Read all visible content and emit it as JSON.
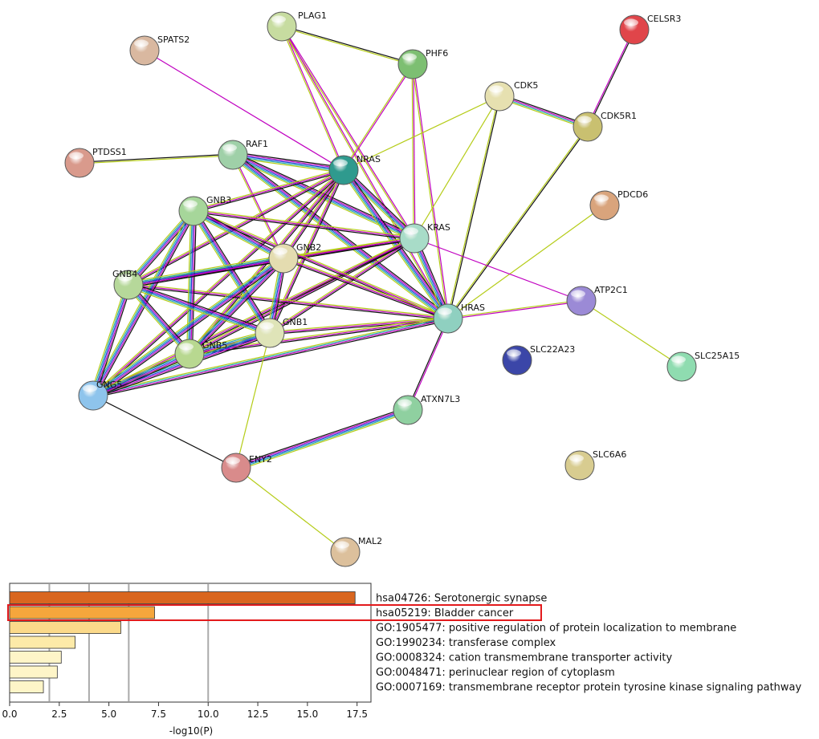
{
  "network": {
    "nodes": [
      {
        "id": "PLAG1",
        "label": "PLAG1",
        "color": "#c7dca0"
      },
      {
        "id": "SPATS2",
        "label": "SPATS2",
        "color": "#d9b8a0"
      },
      {
        "id": "PHF6",
        "label": "PHF6",
        "color": "#7dbf72"
      },
      {
        "id": "CELSR3",
        "label": "CELSR3",
        "color": "#e0454a"
      },
      {
        "id": "CDK5",
        "label": "CDK5",
        "color": "#e6e0b0"
      },
      {
        "id": "CDK5R1",
        "label": "CDK5R1",
        "color": "#c9c070"
      },
      {
        "id": "PTDSS1",
        "label": "PTDSS1",
        "color": "#d99a8c"
      },
      {
        "id": "RAF1",
        "label": "RAF1",
        "color": "#9fd0a8"
      },
      {
        "id": "NRAS",
        "label": "NRAS",
        "color": "#2f9a8e"
      },
      {
        "id": "PDCD6",
        "label": "PDCD6",
        "color": "#d9a47c"
      },
      {
        "id": "GNB3",
        "label": "GNB3",
        "color": "#a6d69a"
      },
      {
        "id": "KRAS",
        "label": "KRAS",
        "color": "#a8dcc8"
      },
      {
        "id": "GNB2",
        "label": "GNB2",
        "color": "#e4dcb0"
      },
      {
        "id": "GNB4",
        "label": "GNB4",
        "color": "#b6d89a"
      },
      {
        "id": "ATP2C1",
        "label": "ATP2C1",
        "color": "#9b8ad6"
      },
      {
        "id": "HRAS",
        "label": "HRAS",
        "color": "#8fd0c0"
      },
      {
        "id": "GNB1",
        "label": "GNB1",
        "color": "#dfe4b8"
      },
      {
        "id": "SLC22A23",
        "label": "SLC22A23",
        "color": "#3b46a8"
      },
      {
        "id": "GNB5",
        "label": "GNB5",
        "color": "#b8d890"
      },
      {
        "id": "SLC25A15",
        "label": "SLC25A15",
        "color": "#8fdcb0"
      },
      {
        "id": "GNG5",
        "label": "GNG5",
        "color": "#8ec4ec"
      },
      {
        "id": "ATXN7L3",
        "label": "ATXN7L3",
        "color": "#8fd0a0"
      },
      {
        "id": "ENY2",
        "label": "ENY2",
        "color": "#d98b8b"
      },
      {
        "id": "SLC6A6",
        "label": "SLC6A6",
        "color": "#d8cc90"
      },
      {
        "id": "MAL2",
        "label": "MAL2",
        "color": "#dcc09c"
      }
    ],
    "edges": [
      {
        "a": "PLAG1",
        "b": "PHF6",
        "colors": [
          "#111111",
          "#b5cc18"
        ]
      },
      {
        "a": "PLAG1",
        "b": "NRAS",
        "colors": [
          "#c000c0",
          "#b5cc18"
        ]
      },
      {
        "a": "PLAG1",
        "b": "KRAS",
        "colors": [
          "#c000c0",
          "#b5cc18"
        ]
      },
      {
        "a": "PLAG1",
        "b": "HRAS",
        "colors": [
          "#c000c0",
          "#b5cc18"
        ]
      },
      {
        "a": "PHF6",
        "b": "NRAS",
        "colors": [
          "#c000c0",
          "#b5cc18"
        ]
      },
      {
        "a": "PHF6",
        "b": "KRAS",
        "colors": [
          "#c000c0",
          "#b5cc18"
        ]
      },
      {
        "a": "PHF6",
        "b": "HRAS",
        "colors": [
          "#c000c0",
          "#b5cc18"
        ]
      },
      {
        "a": "SPATS2",
        "b": "NRAS",
        "colors": [
          "#c000c0"
        ]
      },
      {
        "a": "CELSR3",
        "b": "CDK5R1",
        "colors": [
          "#111111",
          "#c000c0"
        ]
      },
      {
        "a": "CDK5",
        "b": "CDK5R1",
        "colors": [
          "#111111",
          "#c000c0",
          "#22aaaa",
          "#b5cc18"
        ]
      },
      {
        "a": "CDK5",
        "b": "NRAS",
        "colors": [
          "#b5cc18"
        ]
      },
      {
        "a": "CDK5",
        "b": "KRAS",
        "colors": [
          "#b5cc18"
        ]
      },
      {
        "a": "CDK5",
        "b": "HRAS",
        "colors": [
          "#111111",
          "#b5cc18"
        ]
      },
      {
        "a": "CDK5R1",
        "b": "HRAS",
        "colors": [
          "#111111",
          "#b5cc18"
        ]
      },
      {
        "a": "PTDSS1",
        "b": "RAF1",
        "colors": [
          "#111111",
          "#b5cc18"
        ]
      },
      {
        "a": "PDCD6",
        "b": "HRAS",
        "colors": [
          "#b5cc18"
        ]
      },
      {
        "a": "ATP2C1",
        "b": "SLC25A15",
        "colors": [
          "#b5cc18"
        ]
      },
      {
        "a": "ATP2C1",
        "b": "HRAS",
        "colors": [
          "#c000c0",
          "#b5cc18"
        ]
      },
      {
        "a": "KRAS",
        "b": "ATP2C1",
        "colors": [
          "#c000c0"
        ]
      },
      {
        "a": "RAF1",
        "b": "NRAS",
        "colors": [
          "#111111",
          "#c000c0",
          "#1a3fd8",
          "#22aaaa",
          "#b5cc18"
        ]
      },
      {
        "a": "RAF1",
        "b": "KRAS",
        "colors": [
          "#111111",
          "#c000c0",
          "#1a3fd8",
          "#22aaaa",
          "#b5cc18"
        ]
      },
      {
        "a": "RAF1",
        "b": "HRAS",
        "colors": [
          "#111111",
          "#c000c0",
          "#1a3fd8",
          "#22aaaa",
          "#b5cc18"
        ]
      },
      {
        "a": "RAF1",
        "b": "GNB2",
        "colors": [
          "#c000c0",
          "#b5cc18"
        ]
      },
      {
        "a": "NRAS",
        "b": "KRAS",
        "colors": [
          "#111111",
          "#c000c0",
          "#1a3fd8",
          "#22aaaa",
          "#b5cc18"
        ]
      },
      {
        "a": "NRAS",
        "b": "HRAS",
        "colors": [
          "#111111",
          "#c000c0",
          "#1a3fd8",
          "#22aaaa",
          "#b5cc18"
        ]
      },
      {
        "a": "KRAS",
        "b": "HRAS",
        "colors": [
          "#111111",
          "#c000c0",
          "#1a3fd8",
          "#22aaaa",
          "#b5cc18"
        ]
      },
      {
        "a": "NRAS",
        "b": "GNB3",
        "colors": [
          "#111111",
          "#c000c0",
          "#b5cc18"
        ]
      },
      {
        "a": "NRAS",
        "b": "GNB2",
        "colors": [
          "#111111",
          "#c000c0",
          "#b5cc18"
        ]
      },
      {
        "a": "NRAS",
        "b": "GNB4",
        "colors": [
          "#111111",
          "#c000c0",
          "#b5cc18"
        ]
      },
      {
        "a": "NRAS",
        "b": "GNB1",
        "colors": [
          "#111111",
          "#c000c0",
          "#b5cc18"
        ]
      },
      {
        "a": "NRAS",
        "b": "GNB5",
        "colors": [
          "#111111",
          "#c000c0",
          "#b5cc18"
        ]
      },
      {
        "a": "NRAS",
        "b": "GNG5",
        "colors": [
          "#111111",
          "#c000c0",
          "#b5cc18"
        ]
      },
      {
        "a": "KRAS",
        "b": "GNB3",
        "colors": [
          "#111111",
          "#c000c0",
          "#b5cc18"
        ]
      },
      {
        "a": "KRAS",
        "b": "GNB2",
        "colors": [
          "#111111",
          "#c000c0",
          "#b5cc18"
        ]
      },
      {
        "a": "KRAS",
        "b": "GNB4",
        "colors": [
          "#111111",
          "#c000c0",
          "#b5cc18"
        ]
      },
      {
        "a": "KRAS",
        "b": "GNB1",
        "colors": [
          "#111111",
          "#c000c0",
          "#b5cc18"
        ]
      },
      {
        "a": "KRAS",
        "b": "GNB5",
        "colors": [
          "#111111",
          "#c000c0",
          "#b5cc18"
        ]
      },
      {
        "a": "KRAS",
        "b": "GNG5",
        "colors": [
          "#111111",
          "#c000c0",
          "#b5cc18"
        ]
      },
      {
        "a": "HRAS",
        "b": "GNB3",
        "colors": [
          "#111111",
          "#c000c0",
          "#b5cc18"
        ]
      },
      {
        "a": "HRAS",
        "b": "GNB2",
        "colors": [
          "#111111",
          "#c000c0",
          "#b5cc18"
        ]
      },
      {
        "a": "HRAS",
        "b": "GNB4",
        "colors": [
          "#111111",
          "#c000c0",
          "#b5cc18"
        ]
      },
      {
        "a": "HRAS",
        "b": "GNB1",
        "colors": [
          "#111111",
          "#c000c0",
          "#b5cc18"
        ]
      },
      {
        "a": "HRAS",
        "b": "GNB5",
        "colors": [
          "#111111",
          "#c000c0",
          "#b5cc18"
        ]
      },
      {
        "a": "HRAS",
        "b": "GNG5",
        "colors": [
          "#111111",
          "#c000c0",
          "#22aaaa",
          "#b5cc18"
        ]
      },
      {
        "a": "GNB3",
        "b": "GNB2",
        "colors": [
          "#111111",
          "#c000c0",
          "#1a3fd8",
          "#22aaaa",
          "#b5cc18"
        ]
      },
      {
        "a": "GNB3",
        "b": "GNB4",
        "colors": [
          "#111111",
          "#c000c0",
          "#1a3fd8",
          "#22aaaa",
          "#b5cc18"
        ]
      },
      {
        "a": "GNB3",
        "b": "GNB1",
        "colors": [
          "#111111",
          "#c000c0",
          "#1a3fd8",
          "#22aaaa",
          "#b5cc18"
        ]
      },
      {
        "a": "GNB3",
        "b": "GNB5",
        "colors": [
          "#111111",
          "#c000c0",
          "#1a3fd8",
          "#22aaaa",
          "#b5cc18"
        ]
      },
      {
        "a": "GNB3",
        "b": "GNG5",
        "colors": [
          "#111111",
          "#c000c0",
          "#1a3fd8",
          "#22aaaa",
          "#b5cc18"
        ]
      },
      {
        "a": "GNB2",
        "b": "GNB4",
        "colors": [
          "#111111",
          "#c000c0",
          "#1a3fd8",
          "#22aaaa",
          "#b5cc18"
        ]
      },
      {
        "a": "GNB2",
        "b": "GNB1",
        "colors": [
          "#111111",
          "#c000c0",
          "#1a3fd8",
          "#22aaaa",
          "#b5cc18"
        ]
      },
      {
        "a": "GNB2",
        "b": "GNB5",
        "colors": [
          "#111111",
          "#c000c0",
          "#1a3fd8",
          "#22aaaa",
          "#b5cc18"
        ]
      },
      {
        "a": "GNB2",
        "b": "GNG5",
        "colors": [
          "#111111",
          "#c000c0",
          "#1a3fd8",
          "#22aaaa",
          "#b5cc18"
        ]
      },
      {
        "a": "GNB4",
        "b": "GNB1",
        "colors": [
          "#111111",
          "#c000c0",
          "#1a3fd8",
          "#22aaaa",
          "#b5cc18"
        ]
      },
      {
        "a": "GNB4",
        "b": "GNB5",
        "colors": [
          "#111111",
          "#c000c0",
          "#1a3fd8",
          "#22aaaa",
          "#b5cc18"
        ]
      },
      {
        "a": "GNB4",
        "b": "GNG5",
        "colors": [
          "#111111",
          "#c000c0",
          "#1a3fd8",
          "#22aaaa",
          "#b5cc18"
        ]
      },
      {
        "a": "GNB1",
        "b": "GNB5",
        "colors": [
          "#111111",
          "#c000c0",
          "#1a3fd8",
          "#22aaaa",
          "#b5cc18"
        ]
      },
      {
        "a": "GNB1",
        "b": "GNG5",
        "colors": [
          "#111111",
          "#c000c0",
          "#1a3fd8",
          "#22aaaa",
          "#b5cc18"
        ]
      },
      {
        "a": "GNB5",
        "b": "GNG5",
        "colors": [
          "#111111",
          "#c000c0",
          "#1a3fd8",
          "#22aaaa",
          "#b5cc18"
        ]
      },
      {
        "a": "GNG5",
        "b": "ENY2",
        "colors": [
          "#111111"
        ]
      },
      {
        "a": "GNB1",
        "b": "ENY2",
        "colors": [
          "#b5cc18"
        ]
      },
      {
        "a": "ENY2",
        "b": "ATXN7L3",
        "colors": [
          "#111111",
          "#c000c0",
          "#1a3fd8",
          "#22aaaa",
          "#b5cc18"
        ]
      },
      {
        "a": "ENY2",
        "b": "MAL2",
        "colors": [
          "#b5cc18"
        ]
      },
      {
        "a": "ATXN7L3",
        "b": "HRAS",
        "colors": [
          "#111111",
          "#c000c0"
        ]
      }
    ]
  },
  "chart_data": {
    "type": "bar",
    "orientation": "horizontal",
    "categories": [
      "hsa04726: Serotonergic synapse",
      "hsa05219: Bladder cancer",
      "GO:1905477: positive regulation of protein localization to membrane",
      "GO:1990234: transferase complex",
      "GO:0008324: cation transmembrane transporter activity",
      "GO:0048471: perinuclear region of cytoplasm",
      "GO:0007169: transmembrane receptor protein tyrosine kinase signaling pathway"
    ],
    "values": [
      17.4,
      7.3,
      5.6,
      3.3,
      2.6,
      2.4,
      1.7
    ],
    "colors": [
      "#d9661f",
      "#f5a63c",
      "#fbd98a",
      "#fdeaa8",
      "#fef5c8",
      "#fef5c8",
      "#fef5c8"
    ],
    "highlighted_index": 1,
    "highlight_color": "#e31a1c",
    "xlabel": "-log10(P)",
    "xlim": [
      0,
      18.2
    ],
    "ticks": [
      0,
      2.5,
      5,
      7.5,
      10,
      12.5,
      15,
      17.5
    ],
    "tick_labels": [
      "0.0",
      "2.5",
      "5.0",
      "7.5",
      "10.0",
      "12.5",
      "15.0",
      "17.5"
    ],
    "gridlines": [
      2,
      4,
      6,
      10
    ],
    "grid": true
  }
}
